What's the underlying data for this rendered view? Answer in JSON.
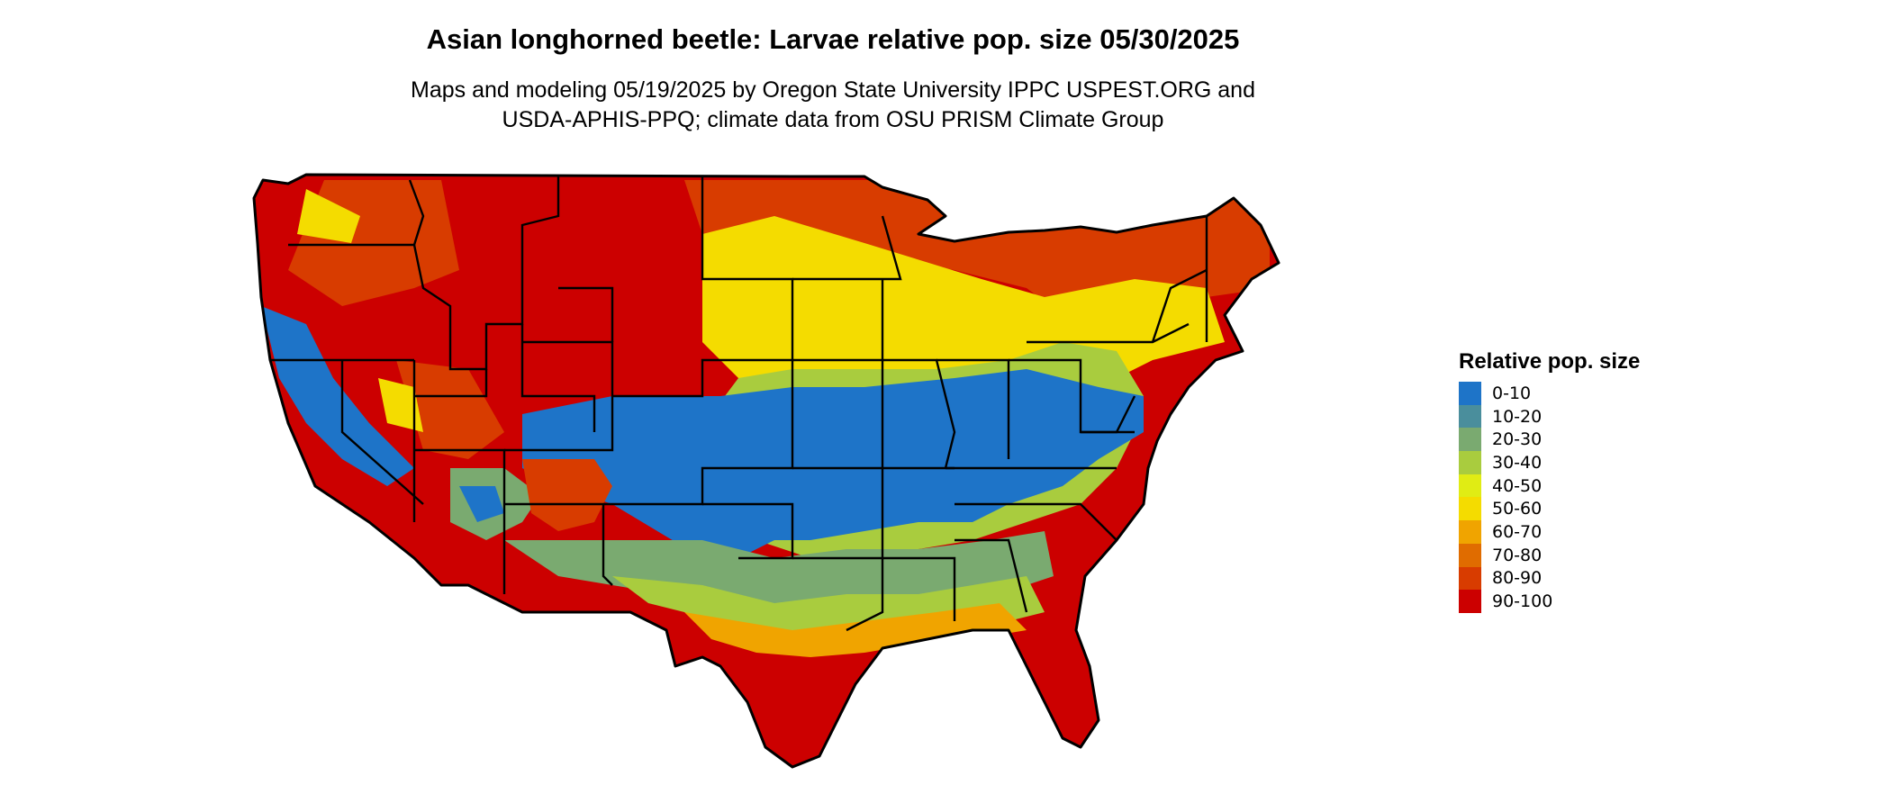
{
  "title": "Asian longhorned beetle: Larvae relative pop. size 05/30/2025",
  "subtitle_lines": [
    "Maps and modeling 05/19/2025 by Oregon State University IPPC USPEST.ORG and",
    "USDA-APHIS-PPQ; climate data from OSU PRISM Climate Group"
  ],
  "legend": {
    "title": "Relative pop. size",
    "items": [
      {
        "label": "0-10",
        "color": "#1e74c8"
      },
      {
        "label": "10-20",
        "color": "#4a8e9c"
      },
      {
        "label": "20-30",
        "color": "#7aaa70"
      },
      {
        "label": "30-40",
        "color": "#a9cc3e"
      },
      {
        "label": "40-50",
        "color": "#e0ec14"
      },
      {
        "label": "50-60",
        "color": "#f4dc00"
      },
      {
        "label": "60-70",
        "color": "#f0a400"
      },
      {
        "label": "70-80",
        "color": "#e06c00"
      },
      {
        "label": "80-90",
        "color": "#d83c00"
      },
      {
        "label": "90-100",
        "color": "#cc0000"
      }
    ]
  }
}
